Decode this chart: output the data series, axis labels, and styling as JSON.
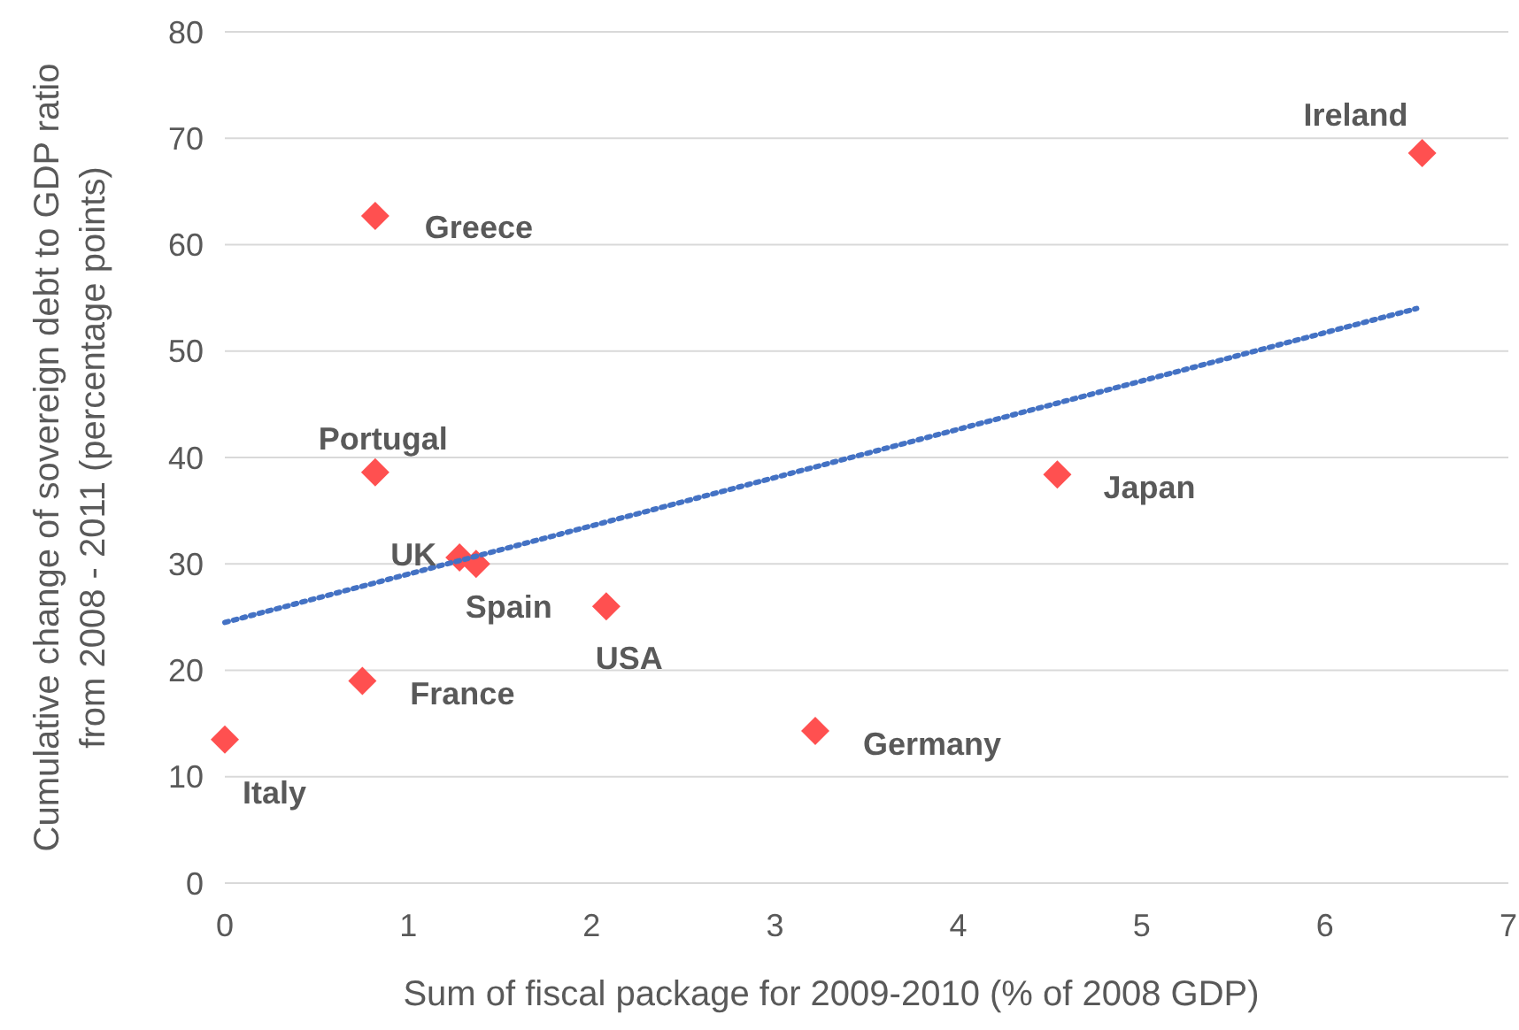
{
  "chart_data": {
    "type": "scatter",
    "xlabel": "Sum of fiscal package for 2009-2010 (% of 2008 GDP)",
    "ylabel": "Cumulative change of sovereign debt to GDP ratio from 2008 - 2011 (percentage points)",
    "xlim": [
      0,
      7
    ],
    "xticks": [
      0,
      1,
      2,
      3,
      4,
      5,
      6,
      7
    ],
    "ylim": [
      0,
      80
    ],
    "yticks": [
      0,
      10,
      20,
      30,
      40,
      50,
      60,
      70,
      80
    ],
    "grid": "y",
    "series": [
      {
        "color": "#ff5050",
        "marker": "diamond",
        "x": [
          6.53,
          0.82,
          0.82,
          4.54,
          1.28,
          1.37,
          2.08,
          0.75,
          0,
          3.22
        ],
        "values": [
          68.6,
          62.7,
          38.6,
          38.4,
          30.6,
          30.0,
          26.0,
          19.0,
          13.5,
          14.3
        ]
      },
      {
        "type": "line",
        "color": "#4472c4",
        "line_style": "dotted",
        "x": [
          0,
          6.5
        ],
        "values": [
          24.5,
          54
        ]
      }
    ],
    "annotations": [
      {
        "text": "Ireland",
        "x": 6.53,
        "y": 68.6
      },
      {
        "text": "Greece",
        "x": 0.82,
        "y": 62.7
      },
      {
        "text": "Portugal",
        "x": 0.82,
        "y": 38.6
      },
      {
        "text": "Japan",
        "x": 4.54,
        "y": 38.4
      },
      {
        "text": "UK",
        "x": 1.28,
        "y": 30.6
      },
      {
        "text": "Spain",
        "x": 1.37,
        "y": 30.0
      },
      {
        "text": "USA",
        "x": 2.08,
        "y": 26.0
      },
      {
        "text": "France",
        "x": 0.75,
        "y": 19.0
      },
      {
        "text": "Italy",
        "x": 0,
        "y": 13.5
      },
      {
        "text": "Germany",
        "x": 3.22,
        "y": 14.3
      }
    ]
  }
}
